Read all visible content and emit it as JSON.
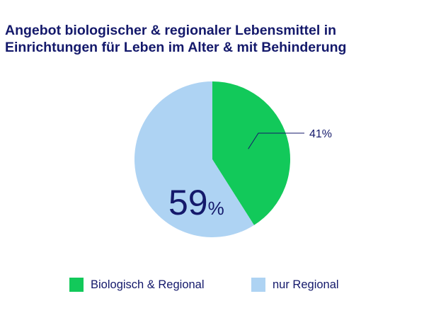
{
  "title": {
    "line1": "Angebot biologischer & regionaler Lebensmittel in",
    "line2": "Einrichtungen für Leben im Alter & mit Behinderung"
  },
  "colors": {
    "title": "#14196b",
    "label": "#14196b",
    "slice_bio": "#12c95a",
    "slice_reg": "#aed3f3"
  },
  "chart_data": {
    "type": "pie",
    "title": "Angebot biologischer & regionaler Lebensmittel in Einrichtungen für Leben im Alter & mit Behinderung",
    "legend_position": "bottom",
    "slices": [
      {
        "name": "Biologisch & Regional",
        "value": 41,
        "label": "41%",
        "color": "#12c95a"
      },
      {
        "name": "nur Regional",
        "value": 59,
        "label": "59%",
        "color": "#aed3f3"
      }
    ]
  },
  "legend": {
    "items": [
      {
        "label": "Biologisch & Regional",
        "color": "#12c95a"
      },
      {
        "label": "nur Regional",
        "color": "#aed3f3"
      }
    ]
  }
}
